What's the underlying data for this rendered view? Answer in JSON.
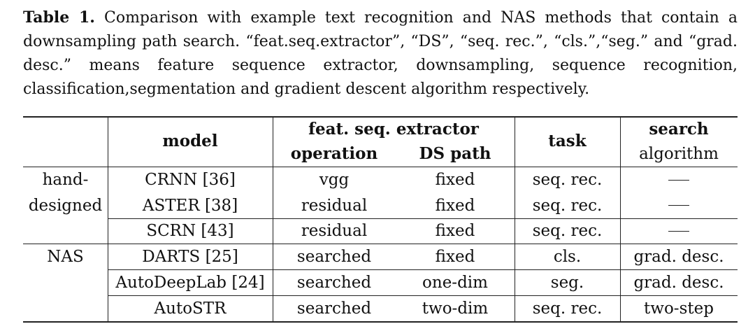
{
  "caption": {
    "label": "Table 1.",
    "text": "Comparison with example text recognition and NAS methods that contain a downsampling path search. “feat.seq.extractor”, “DS”, “seq. rec.”, “cls.”,“seg.” and “grad. desc.” means feature sequence extractor, downsampling, sequence recognition, classification,segmentation and gradient descent algorithm respectively."
  },
  "table": {
    "headers": {
      "model": "model",
      "extractor": "feat. seq. extractor",
      "operation": "operation",
      "ds_path": "DS path",
      "task": "task",
      "search": "search",
      "algorithm": "algorithm"
    },
    "groups": [
      {
        "name_line1": "hand-",
        "name_line2": "designed"
      },
      {
        "name_line1": "NAS"
      }
    ],
    "rows": [
      {
        "model": "CRNN [36]",
        "operation": "vgg",
        "ds_path": "fixed",
        "task": "seq. rec.",
        "search": "—"
      },
      {
        "model": "ASTER [38]",
        "operation": "residual",
        "ds_path": "fixed",
        "task": "seq. rec.",
        "search": "—"
      },
      {
        "model": "SCRN [43]",
        "operation": "residual",
        "ds_path": "fixed",
        "task": "seq. rec.",
        "search": "—"
      },
      {
        "model": "DARTS [25]",
        "operation": "searched",
        "ds_path": "fixed",
        "task": "cls.",
        "search": "grad. desc."
      },
      {
        "model": "AutoDeepLab [24]",
        "operation": "searched",
        "ds_path": "one-dim",
        "task": "seg.",
        "search": "grad. desc."
      },
      {
        "model": "AutoSTR",
        "operation": "searched",
        "ds_path": "two-dim",
        "task": "seq. rec.",
        "search": "two-step"
      }
    ]
  }
}
